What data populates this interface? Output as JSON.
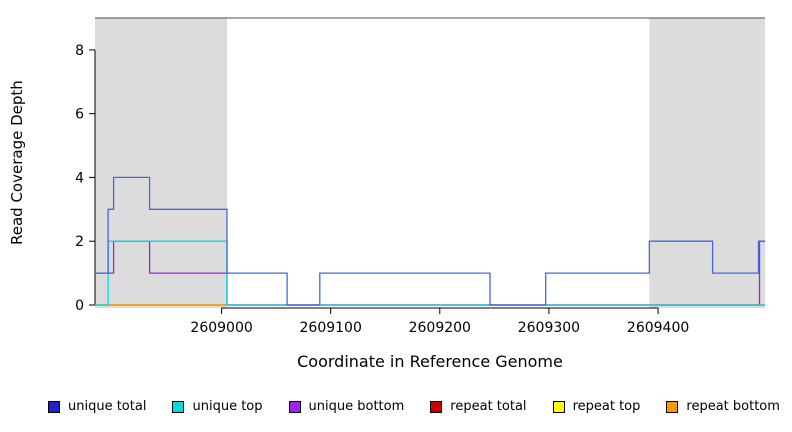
{
  "chart_data": {
    "type": "line",
    "subtype": "step-coverage-plot",
    "title": "",
    "xlabel": "Coordinate in Reference Genome",
    "ylabel": "Read Coverage Depth",
    "xlim": [
      2608884,
      2609498
    ],
    "ylim": [
      0,
      9
    ],
    "x_ticks": [
      2609000,
      2609100,
      2609200,
      2609300,
      2609400
    ],
    "y_ticks": [
      0,
      2,
      4,
      6,
      8
    ],
    "grid": false,
    "shaded_region_color": "#dcdcdc",
    "shaded_regions": [
      {
        "name": "shaded-region-left",
        "x_start": 2608884,
        "x_end": 2609005
      },
      {
        "name": "shaded-region-right",
        "x_start": 2609392,
        "x_end": 2609498
      }
    ],
    "series": [
      {
        "name": "repeat top",
        "color": "#ffff00",
        "x_end": 2609005,
        "steps": [
          [
            2608884,
            0
          ]
        ]
      },
      {
        "name": "repeat total",
        "color": "#cc0000",
        "x_end": 2609498,
        "steps": [
          [
            2608884,
            0
          ]
        ]
      },
      {
        "name": "repeat bottom",
        "color": "#ff9900",
        "x_end": 2609005,
        "steps": [
          [
            2608884,
            0
          ]
        ]
      },
      {
        "name": "unique bottom",
        "color": "#a020f0",
        "x_end": 2609498,
        "steps": [
          [
            2608884,
            1
          ],
          [
            2608901,
            2
          ],
          [
            2608934,
            1
          ],
          [
            2609005,
            0
          ],
          [
            2609493,
            2
          ]
        ]
      },
      {
        "name": "unique top",
        "color": "#00dddd",
        "x_end": 2609498,
        "steps": [
          [
            2608884,
            0
          ],
          [
            2608896,
            2
          ],
          [
            2609005,
            0
          ]
        ]
      },
      {
        "name": "unique total",
        "color": "#4169e1",
        "x_end": 2609498,
        "steps": [
          [
            2608884,
            1
          ],
          [
            2608896,
            3
          ],
          [
            2608901,
            4
          ],
          [
            2608934,
            3
          ],
          [
            2609005,
            1
          ],
          [
            2609060,
            0
          ],
          [
            2609090,
            1
          ],
          [
            2609246,
            0
          ],
          [
            2609297,
            1
          ],
          [
            2609392,
            2
          ],
          [
            2609450,
            1
          ],
          [
            2609492,
            2
          ]
        ]
      }
    ],
    "legend": [
      {
        "label": "unique total",
        "color": "#2222cc"
      },
      {
        "label": "unique top",
        "color": "#00dddd"
      },
      {
        "label": "unique bottom",
        "color": "#a020f0"
      },
      {
        "label": "repeat total",
        "color": "#cc0000"
      },
      {
        "label": "repeat top",
        "color": "#ffff00"
      },
      {
        "label": "repeat bottom",
        "color": "#ff9900"
      }
    ]
  }
}
